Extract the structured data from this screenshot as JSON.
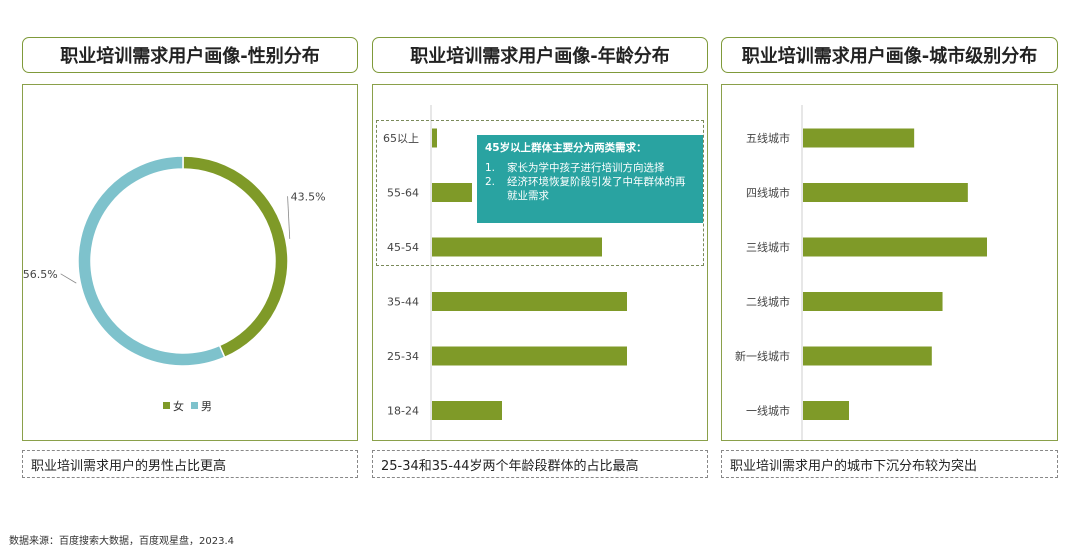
{
  "panels": [
    {
      "title": "职业培训需求用户画像-性别分布",
      "caption": "职业培训需求用户的男性占比更高"
    },
    {
      "title": "职业培训需求用户画像-年龄分布",
      "caption": "25-34和35-44岁两个年龄段群体的占比最高"
    },
    {
      "title": "职业培训需求用户画像-城市级别分布",
      "caption": "职业培训需求用户的城市下沉分布较为突出"
    }
  ],
  "callout": {
    "heading": "45岁以上群体主要分为两类需求：",
    "items": [
      {
        "num": "1.",
        "text": "家长为学中孩子进行培训方向选择"
      },
      {
        "num": "2.",
        "text": "经济环境恢复阶段引发了中年群体的再就业需求"
      }
    ]
  },
  "source": "数据来源：百度搜索大数据，百度观星盘，2023.4",
  "colors": {
    "green": "#7f9a28",
    "blue": "#7ec2cc",
    "teal": "#29a3a1"
  },
  "chart_data": [
    {
      "type": "pie",
      "style": "donut",
      "labels": [
        "女",
        "男"
      ],
      "values": [
        43.5,
        56.5
      ],
      "value_labels": [
        "43.5%",
        "56.5%"
      ],
      "colors": [
        "#7f9a28",
        "#7ec2cc"
      ],
      "legend": "bottom"
    },
    {
      "type": "bar",
      "orientation": "horizontal",
      "categories": [
        "65以上",
        "55-64",
        "45-54",
        "35-44",
        "25-34",
        "18-24"
      ],
      "values": [
        1,
        8,
        34,
        39,
        39,
        14
      ],
      "xlim": [
        0,
        50
      ],
      "color": "#7f9a28",
      "grid": false
    },
    {
      "type": "bar",
      "orientation": "horizontal",
      "categories": [
        "五线城市",
        "四线城市",
        "三线城市",
        "二线城市",
        "新一线城市",
        "一线城市"
      ],
      "values": [
        14.5,
        21.5,
        24,
        18.2,
        16.8,
        6
      ],
      "xlim": [
        0,
        30
      ],
      "color": "#7f9a28",
      "grid": false
    }
  ]
}
